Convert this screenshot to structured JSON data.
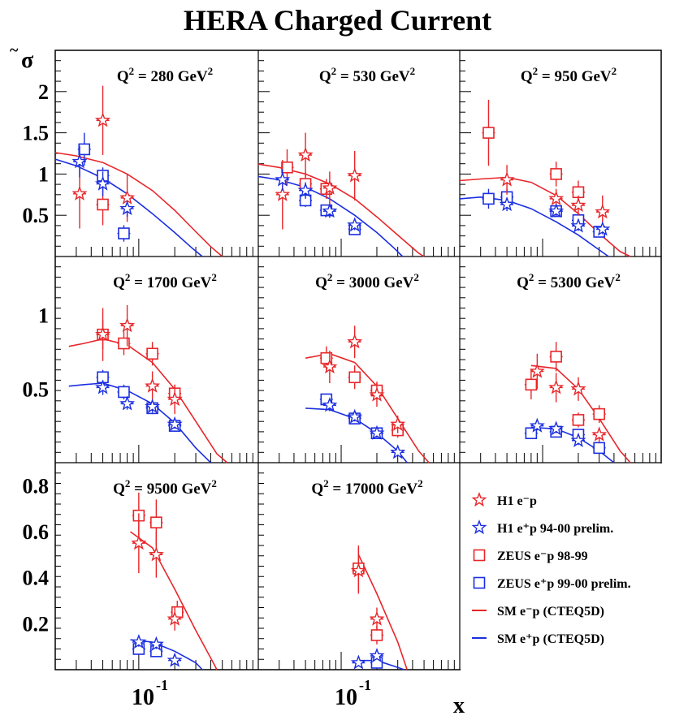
{
  "title": "HERA Charged Current",
  "y_symbol": "σ",
  "y_symbol_accent": "~",
  "x_label": "x",
  "x_tick_base": "10",
  "x_tick_exp": "-1",
  "colors": {
    "red": "#e8262a",
    "blue": "#1b2ee0",
    "black": "#000000"
  },
  "legend": [
    {
      "id": "h1-em",
      "marker": "star",
      "color": "#e8262a",
      "label": "H1 e⁻p"
    },
    {
      "id": "h1-ep",
      "marker": "star",
      "color": "#1b2ee0",
      "label": "H1 e⁺p 94-00 prelim."
    },
    {
      "id": "zeus-em",
      "marker": "square",
      "color": "#e8262a",
      "label": "ZEUS e⁻p 98-99"
    },
    {
      "id": "zeus-ep",
      "marker": "square",
      "color": "#1b2ee0",
      "label": "ZEUS e⁺p 99-00 prelim."
    },
    {
      "id": "sm-em",
      "marker": "line",
      "color": "#e8262a",
      "label": "SM e⁻p (CTEQ5D)"
    },
    {
      "id": "sm-ep",
      "marker": "line",
      "color": "#1b2ee0",
      "label": "SM e⁺p (CTEQ5D)"
    }
  ],
  "chart_data": {
    "type": "scatter",
    "title": "HERA Charged Current",
    "xlabel": "x",
    "ylabel": "σ̃",
    "xscale": "log",
    "xlim": [
      0.02,
      1.0
    ],
    "rows": [
      {
        "ylim": [
          0,
          2.5
        ],
        "yticks": [
          0.5,
          1,
          1.5,
          2
        ],
        "ytick_labels": [
          "0.5",
          "1",
          "1.5",
          "2"
        ]
      },
      {
        "ylim": [
          0,
          1.4
        ],
        "yticks": [
          0.5,
          1
        ],
        "ytick_labels": [
          "0.5",
          "1"
        ]
      },
      {
        "ylim": [
          0,
          0.9
        ],
        "yticks": [
          0.2,
          0.4,
          0.6,
          0.8
        ],
        "ytick_labels": [
          "0.2",
          "0.4",
          "0.6",
          "0.8"
        ]
      }
    ],
    "panels": [
      {
        "label": "Q² = 280 GeV²",
        "q2": "280",
        "row": 0,
        "col": 0,
        "sm_em": [
          [
            0.02,
            1.26
          ],
          [
            0.03,
            1.22
          ],
          [
            0.05,
            1.14
          ],
          [
            0.08,
            1.0
          ],
          [
            0.13,
            0.8
          ],
          [
            0.2,
            0.56
          ],
          [
            0.3,
            0.3
          ],
          [
            0.4,
            0.12
          ],
          [
            0.5,
            0.0
          ]
        ],
        "sm_ep": [
          [
            0.02,
            1.18
          ],
          [
            0.03,
            1.1
          ],
          [
            0.05,
            0.95
          ],
          [
            0.08,
            0.76
          ],
          [
            0.13,
            0.52
          ],
          [
            0.2,
            0.29
          ],
          [
            0.28,
            0.1
          ],
          [
            0.34,
            0.0
          ]
        ],
        "h1_em": [
          [
            0.032,
            0.76,
            0.42
          ],
          [
            0.05,
            1.65,
            0.42
          ],
          [
            0.08,
            0.71,
            0.29
          ]
        ],
        "h1_ep": [
          [
            0.032,
            1.15,
            0.19
          ],
          [
            0.05,
            0.88,
            0.15
          ],
          [
            0.08,
            0.58,
            0.1
          ]
        ],
        "zeus_em": [
          [
            0.05,
            0.63,
            0.25
          ]
        ],
        "zeus_ep": [
          [
            0.035,
            1.3,
            0.2
          ],
          [
            0.05,
            0.98,
            0.1
          ],
          [
            0.075,
            0.28,
            0.1
          ]
        ]
      },
      {
        "label": "Q² = 530 GeV²",
        "q2": "530",
        "row": 0,
        "col": 1,
        "sm_em": [
          [
            0.02,
            1.12
          ],
          [
            0.03,
            1.08
          ],
          [
            0.05,
            1.0
          ],
          [
            0.08,
            0.88
          ],
          [
            0.13,
            0.7
          ],
          [
            0.2,
            0.48
          ],
          [
            0.3,
            0.26
          ],
          [
            0.45,
            0.04
          ],
          [
            0.5,
            0.0
          ]
        ],
        "sm_ep": [
          [
            0.02,
            0.97
          ],
          [
            0.03,
            0.93
          ],
          [
            0.05,
            0.84
          ],
          [
            0.08,
            0.7
          ],
          [
            0.13,
            0.5
          ],
          [
            0.2,
            0.29
          ],
          [
            0.28,
            0.1
          ],
          [
            0.33,
            0.0
          ]
        ],
        "h1_em": [
          [
            0.032,
            0.75,
            0.42
          ],
          [
            0.05,
            1.23,
            0.27
          ],
          [
            0.08,
            0.83,
            0.2
          ],
          [
            0.13,
            0.98,
            0.3
          ]
        ],
        "h1_ep": [
          [
            0.032,
            0.93,
            0.13
          ],
          [
            0.05,
            0.8,
            0.1
          ],
          [
            0.08,
            0.55,
            0.08
          ],
          [
            0.13,
            0.38,
            0.06
          ]
        ],
        "zeus_em": [
          [
            0.035,
            1.08,
            0.22
          ],
          [
            0.05,
            0.88,
            0.14
          ],
          [
            0.075,
            0.82,
            0.12
          ]
        ],
        "zeus_ep": [
          [
            0.05,
            0.68,
            0.08
          ],
          [
            0.075,
            0.56,
            0.06
          ],
          [
            0.13,
            0.33,
            0.06
          ]
        ]
      },
      {
        "label": "Q² = 950 GeV²",
        "q2": "950",
        "row": 0,
        "col": 2,
        "sm_em": [
          [
            0.02,
            0.92
          ],
          [
            0.03,
            0.94
          ],
          [
            0.05,
            0.96
          ],
          [
            0.08,
            0.9
          ],
          [
            0.13,
            0.74
          ],
          [
            0.2,
            0.52
          ],
          [
            0.3,
            0.28
          ],
          [
            0.45,
            0.06
          ],
          [
            0.55,
            0.0
          ]
        ],
        "sm_ep": [
          [
            0.02,
            0.7
          ],
          [
            0.03,
            0.72
          ],
          [
            0.05,
            0.68
          ],
          [
            0.08,
            0.58
          ],
          [
            0.13,
            0.42
          ],
          [
            0.2,
            0.26
          ],
          [
            0.3,
            0.08
          ],
          [
            0.36,
            0.0
          ]
        ],
        "h1_em": [
          [
            0.05,
            0.93,
            0.18
          ],
          [
            0.13,
            0.7,
            0.12
          ],
          [
            0.2,
            0.62,
            0.12
          ],
          [
            0.32,
            0.54,
            0.2
          ]
        ],
        "h1_ep": [
          [
            0.05,
            0.63,
            0.08
          ],
          [
            0.13,
            0.55,
            0.06
          ],
          [
            0.2,
            0.37,
            0.06
          ],
          [
            0.32,
            0.33,
            0.06
          ]
        ],
        "zeus_em": [
          [
            0.035,
            1.5,
            0.4
          ],
          [
            0.13,
            1.0,
            0.15
          ],
          [
            0.2,
            0.78,
            0.14
          ]
        ],
        "zeus_ep": [
          [
            0.035,
            0.7,
            0.12
          ],
          [
            0.05,
            0.72,
            0.1
          ],
          [
            0.13,
            0.55,
            0.06
          ],
          [
            0.2,
            0.44,
            0.06
          ],
          [
            0.3,
            0.3,
            0.06
          ]
        ]
      },
      {
        "label": "Q² = 1700 GeV²",
        "q2": "1700",
        "row": 1,
        "col": 0,
        "sm_em": [
          [
            0.026,
            0.79
          ],
          [
            0.035,
            0.81
          ],
          [
            0.05,
            0.84
          ],
          [
            0.08,
            0.8
          ],
          [
            0.13,
            0.68
          ],
          [
            0.2,
            0.5
          ],
          [
            0.3,
            0.28
          ],
          [
            0.45,
            0.06
          ],
          [
            0.55,
            0.0
          ]
        ],
        "sm_ep": [
          [
            0.026,
            0.52
          ],
          [
            0.035,
            0.53
          ],
          [
            0.05,
            0.54
          ],
          [
            0.08,
            0.49
          ],
          [
            0.13,
            0.4
          ],
          [
            0.2,
            0.27
          ],
          [
            0.3,
            0.1
          ],
          [
            0.4,
            0.0
          ]
        ],
        "h1_em": [
          [
            0.05,
            0.87,
            0.18
          ],
          [
            0.08,
            0.93,
            0.14
          ],
          [
            0.13,
            0.52,
            0.1
          ],
          [
            0.2,
            0.43,
            0.1
          ]
        ],
        "h1_ep": [
          [
            0.05,
            0.51,
            0.05
          ],
          [
            0.08,
            0.4,
            0.04
          ],
          [
            0.13,
            0.38,
            0.04
          ],
          [
            0.2,
            0.26,
            0.03
          ]
        ],
        "zeus_em": [
          [
            0.05,
            0.87,
            0.1
          ],
          [
            0.075,
            0.81,
            0.08
          ],
          [
            0.13,
            0.74,
            0.08
          ],
          [
            0.2,
            0.47,
            0.06
          ]
        ],
        "zeus_ep": [
          [
            0.05,
            0.58,
            0.05
          ],
          [
            0.075,
            0.48,
            0.05
          ],
          [
            0.13,
            0.37,
            0.04
          ],
          [
            0.2,
            0.25,
            0.04
          ]
        ]
      },
      {
        "label": "Q² = 3000 GeV²",
        "q2": "3000",
        "row": 1,
        "col": 1,
        "sm_em": [
          [
            0.05,
            0.71
          ],
          [
            0.08,
            0.74
          ],
          [
            0.13,
            0.68
          ],
          [
            0.2,
            0.52
          ],
          [
            0.3,
            0.3
          ],
          [
            0.45,
            0.08
          ],
          [
            0.55,
            0.0
          ]
        ],
        "sm_ep": [
          [
            0.05,
            0.37
          ],
          [
            0.08,
            0.36
          ],
          [
            0.13,
            0.3
          ],
          [
            0.2,
            0.2
          ],
          [
            0.3,
            0.08
          ],
          [
            0.36,
            0.0
          ]
        ],
        "h1_em": [
          [
            0.08,
            0.65,
            0.11
          ],
          [
            0.13,
            0.82,
            0.11
          ],
          [
            0.2,
            0.46,
            0.08
          ],
          [
            0.3,
            0.26,
            0.06
          ]
        ],
        "h1_ep": [
          [
            0.08,
            0.39,
            0.04
          ],
          [
            0.13,
            0.31,
            0.03
          ],
          [
            0.2,
            0.2,
            0.03
          ],
          [
            0.3,
            0.07,
            0.02
          ]
        ],
        "zeus_em": [
          [
            0.075,
            0.71,
            0.08
          ],
          [
            0.13,
            0.58,
            0.08
          ],
          [
            0.2,
            0.49,
            0.06
          ],
          [
            0.3,
            0.22,
            0.05
          ]
        ],
        "zeus_ep": [
          [
            0.075,
            0.43,
            0.04
          ],
          [
            0.13,
            0.3,
            0.03
          ],
          [
            0.2,
            0.2,
            0.03
          ]
        ]
      },
      {
        "label": "Q² = 5300 GeV²",
        "q2": "5300",
        "row": 1,
        "col": 2,
        "sm_em": [
          [
            0.08,
            0.66
          ],
          [
            0.13,
            0.64
          ],
          [
            0.2,
            0.5
          ],
          [
            0.3,
            0.3
          ],
          [
            0.45,
            0.08
          ],
          [
            0.55,
            0.0
          ]
        ],
        "sm_ep": [
          [
            0.08,
            0.24
          ],
          [
            0.13,
            0.23
          ],
          [
            0.2,
            0.17
          ],
          [
            0.3,
            0.08
          ],
          [
            0.4,
            0.0
          ]
        ],
        "h1_em": [
          [
            0.09,
            0.62,
            0.12
          ],
          [
            0.13,
            0.51,
            0.1
          ],
          [
            0.2,
            0.5,
            0.08
          ],
          [
            0.3,
            0.19,
            0.05
          ]
        ],
        "h1_ep": [
          [
            0.09,
            0.25,
            0.03
          ],
          [
            0.13,
            0.23,
            0.03
          ],
          [
            0.2,
            0.15,
            0.03
          ]
        ],
        "zeus_em": [
          [
            0.08,
            0.53,
            0.1
          ],
          [
            0.13,
            0.72,
            0.1
          ],
          [
            0.2,
            0.29,
            0.05
          ],
          [
            0.3,
            0.33,
            0.06
          ]
        ],
        "zeus_ep": [
          [
            0.08,
            0.2,
            0.03
          ],
          [
            0.13,
            0.21,
            0.03
          ],
          [
            0.2,
            0.19,
            0.03
          ],
          [
            0.3,
            0.1,
            0.02
          ]
        ]
      },
      {
        "label": "Q² = 9500 GeV²",
        "q2": "9500",
        "row": 2,
        "col": 0,
        "sm_em": [
          [
            0.085,
            0.6
          ],
          [
            0.13,
            0.53
          ],
          [
            0.2,
            0.35
          ],
          [
            0.3,
            0.17
          ],
          [
            0.42,
            0.03
          ],
          [
            0.45,
            0.0
          ]
        ],
        "sm_ep": [
          [
            0.085,
            0.13
          ],
          [
            0.13,
            0.12
          ],
          [
            0.2,
            0.08
          ],
          [
            0.3,
            0.03
          ],
          [
            0.34,
            0.0
          ]
        ],
        "h1_em": [
          [
            0.1,
            0.55,
            0.13
          ],
          [
            0.14,
            0.5,
            0.1
          ],
          [
            0.2,
            0.22,
            0.05
          ]
        ],
        "h1_ep": [
          [
            0.1,
            0.12,
            0.02
          ],
          [
            0.14,
            0.11,
            0.02
          ],
          [
            0.2,
            0.04,
            0.01
          ]
        ],
        "zeus_em": [
          [
            0.1,
            0.67,
            0.1
          ],
          [
            0.14,
            0.64,
            0.1
          ],
          [
            0.21,
            0.25,
            0.05
          ]
        ],
        "zeus_ep": [
          [
            0.1,
            0.09,
            0.02
          ],
          [
            0.14,
            0.08,
            0.02
          ]
        ]
      },
      {
        "label": "Q² = 17000 GeV²",
        "q2": "17000",
        "row": 2,
        "col": 1,
        "sm_em": [
          [
            0.14,
            0.5
          ],
          [
            0.2,
            0.33
          ],
          [
            0.3,
            0.12
          ],
          [
            0.36,
            0.0
          ]
        ],
        "sm_ep": [
          [
            0.14,
            0.04
          ],
          [
            0.2,
            0.04
          ],
          [
            0.3,
            0.01
          ],
          [
            0.34,
            0.0
          ]
        ],
        "h1_em": [
          [
            0.14,
            0.43,
            0.1
          ],
          [
            0.2,
            0.22,
            0.05
          ]
        ],
        "h1_ep": [
          [
            0.14,
            0.03,
            0.01
          ],
          [
            0.2,
            0.06,
            0.01
          ]
        ],
        "zeus_em": [
          [
            0.14,
            0.44,
            0.1
          ],
          [
            0.2,
            0.15,
            0.04
          ]
        ],
        "zeus_ep": [
          [
            0.2,
            0.03,
            0.01
          ]
        ]
      }
    ]
  }
}
